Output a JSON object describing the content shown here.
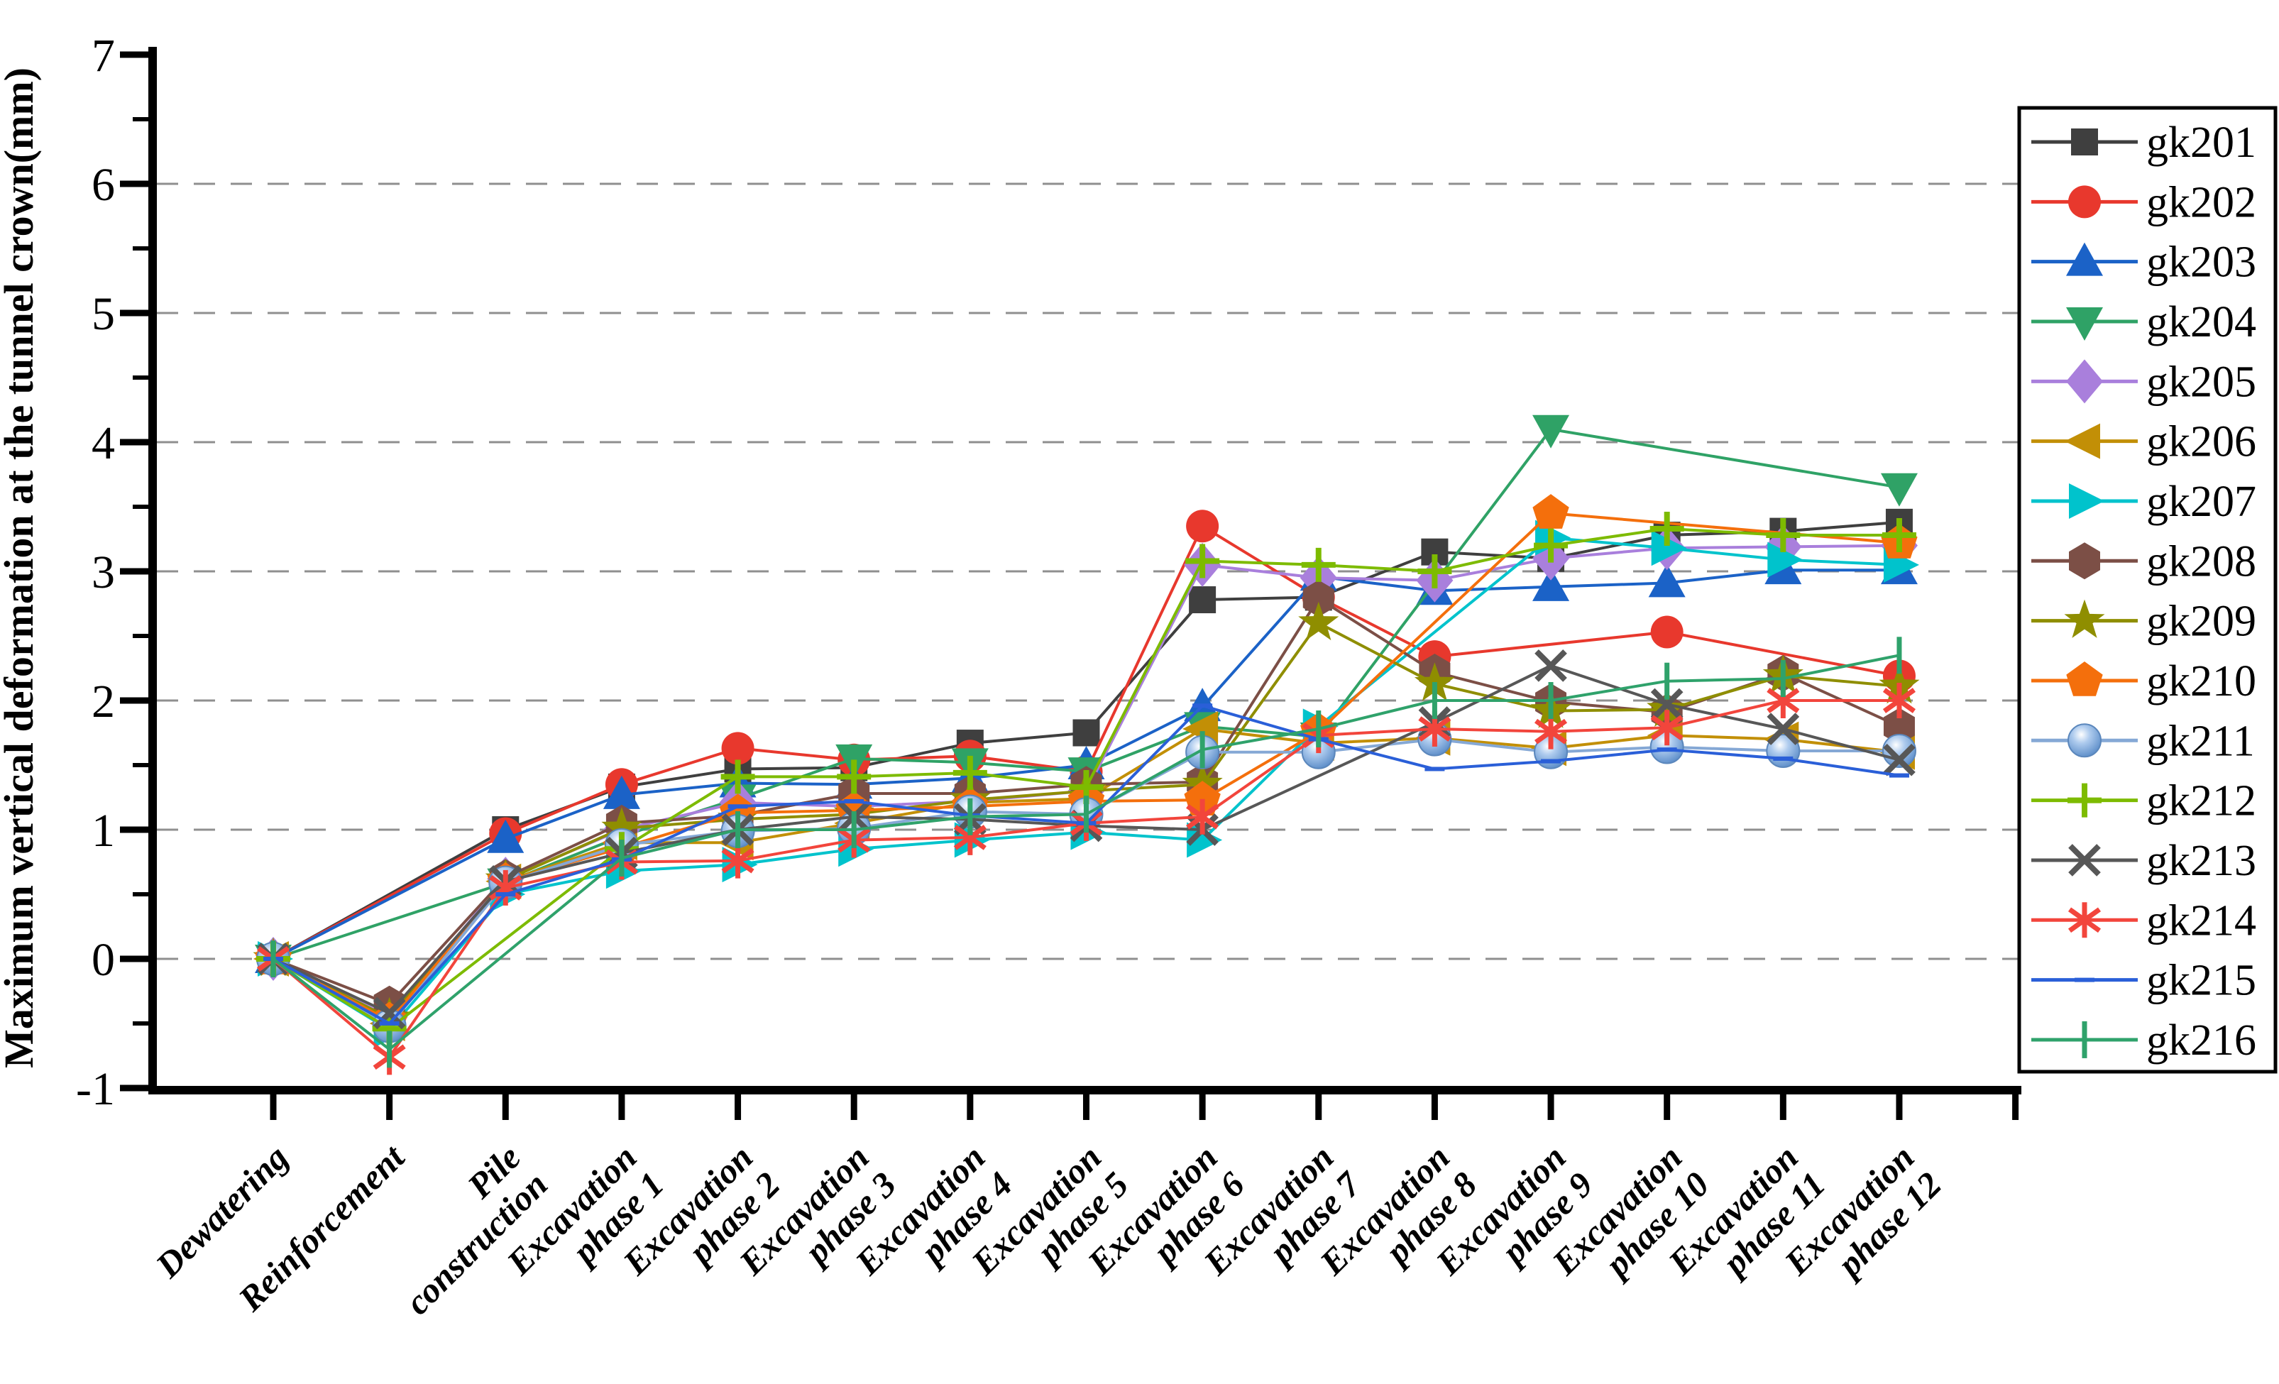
{
  "figure": {
    "background": "#ffffff",
    "grid_color": "#8f8f8f",
    "axis_color": "#000000"
  },
  "chart_data": {
    "type": "line",
    "title": "",
    "xlabel": "",
    "ylabel": "Maximum vertical deformation at the tunnel crown(mm)",
    "ylim": [
      -1,
      7
    ],
    "yticks": [
      -1,
      0,
      1,
      2,
      3,
      4,
      5,
      6,
      7
    ],
    "ytick_labels": [
      "-1",
      "0",
      "1",
      "2",
      "3",
      "4",
      "5",
      "6",
      "7"
    ],
    "minor_yticks": [
      -0.5,
      0.5,
      1.5,
      2.5,
      3.5,
      4.5,
      5.5,
      6.5
    ],
    "gridlines_at": [
      0,
      1,
      2,
      3,
      4,
      5,
      6
    ],
    "grid_on": true,
    "legend_position": "right",
    "categories": [
      "Dewatering",
      "Reinforcement",
      "Pile construction",
      "Excavation phase 1",
      "Excavation phase 2",
      "Excavation phase 3",
      "Excavation phase 4",
      "Excavation phase 5",
      "Excavation phase 6",
      "Excavation phase 7",
      "Excavation phase 8",
      "Excavation phase 9",
      "Excavation phase 10",
      "Excavation phase 11",
      "Excavation phase 12"
    ],
    "category_label_lines": [
      [
        "Dewatering"
      ],
      [
        "Reinforcement"
      ],
      [
        "Pile",
        "construction"
      ],
      [
        "Excavation",
        "phase 1"
      ],
      [
        "Excavation",
        "phase 2"
      ],
      [
        "Excavation",
        "phase 3"
      ],
      [
        "Excavation",
        "phase 4"
      ],
      [
        "Excavation",
        "phase 5"
      ],
      [
        "Excavation",
        "phase 6"
      ],
      [
        "Excavation",
        "phase 7"
      ],
      [
        "Excavation",
        "phase 8"
      ],
      [
        "Excavation",
        "phase 9"
      ],
      [
        "Excavation",
        "phase 10"
      ],
      [
        "Excavation",
        "phase 11"
      ],
      [
        "Excavation",
        "phase 12"
      ]
    ],
    "series": [
      {
        "name": "gk201",
        "color": "#3f3f3f",
        "marker": "square",
        "values": [
          0,
          null,
          1.0,
          1.33,
          1.47,
          1.48,
          1.67,
          1.75,
          2.78,
          2.8,
          3.15,
          3.1,
          3.28,
          3.31,
          3.38
        ]
      },
      {
        "name": "gk202",
        "color": "#e8382d",
        "marker": "circle",
        "values": [
          0,
          null,
          0.97,
          1.35,
          1.63,
          1.54,
          1.57,
          1.45,
          3.35,
          2.8,
          2.34,
          null,
          2.53,
          null,
          2.19
        ]
      },
      {
        "name": "gk203",
        "color": "#1b62c7",
        "marker": "triangle-up",
        "values": [
          0,
          null,
          0.93,
          1.27,
          1.36,
          1.35,
          1.4,
          1.5,
          1.95,
          2.96,
          2.85,
          2.88,
          2.91,
          3.01,
          3.01
        ]
      },
      {
        "name": "gk204",
        "color": "#2fa266",
        "marker": "triangle-down",
        "values": [
          0,
          null,
          0.59,
          0.95,
          1.24,
          1.55,
          1.52,
          1.45,
          1.8,
          1.72,
          null,
          4.1,
          null,
          null,
          3.65
        ]
      },
      {
        "name": "gk205",
        "color": "#a97fdc",
        "marker": "diamond",
        "values": [
          0,
          -0.45,
          0.62,
          1.0,
          1.21,
          1.18,
          1.22,
          1.3,
          3.05,
          2.95,
          2.93,
          3.1,
          3.18,
          3.19,
          3.2
        ]
      },
      {
        "name": "gk206",
        "color": "#c28f06",
        "marker": "triangle-left",
        "values": [
          0,
          -0.5,
          0.6,
          0.9,
          0.9,
          1.05,
          1.21,
          1.24,
          1.78,
          1.67,
          1.71,
          1.63,
          1.73,
          1.7,
          1.6
        ]
      },
      {
        "name": "gk207",
        "color": "#00c3cc",
        "marker": "triangle-right",
        "values": [
          0,
          -0.55,
          0.5,
          0.68,
          0.73,
          0.85,
          0.92,
          0.98,
          0.92,
          1.8,
          null,
          3.26,
          3.18,
          3.09,
          3.05
        ]
      },
      {
        "name": "gk208",
        "color": "#7c4f46",
        "marker": "hexagon",
        "values": [
          0,
          -0.35,
          0.63,
          1.05,
          1.11,
          1.28,
          1.28,
          1.35,
          1.37,
          2.79,
          2.22,
          1.99,
          1.91,
          2.21,
          1.8
        ]
      },
      {
        "name": "gk209",
        "color": "#8f8e00",
        "marker": "star",
        "values": [
          0,
          -0.46,
          0.61,
          1.01,
          1.08,
          1.12,
          1.23,
          1.3,
          1.35,
          2.6,
          2.13,
          1.92,
          1.93,
          2.19,
          2.11
        ]
      },
      {
        "name": "gk210",
        "color": "#f46f0c",
        "marker": "pentagon",
        "values": [
          0,
          -0.48,
          0.6,
          0.86,
          1.13,
          1.15,
          1.18,
          1.22,
          1.23,
          1.76,
          null,
          3.45,
          null,
          null,
          3.22
        ]
      },
      {
        "name": "gk211",
        "color": "#85a8d5",
        "marker": "ball",
        "values": [
          0,
          -0.52,
          0.59,
          0.88,
          0.99,
          1.01,
          1.14,
          1.12,
          1.6,
          1.6,
          1.7,
          1.6,
          1.64,
          1.61,
          1.61
        ]
      },
      {
        "name": "gk212",
        "color": "#7dbb00",
        "marker": "plus",
        "values": [
          0,
          -0.54,
          null,
          0.85,
          1.41,
          1.41,
          1.44,
          1.33,
          3.08,
          3.05,
          3.0,
          3.2,
          3.33,
          3.28,
          3.28
        ]
      },
      {
        "name": "gk213",
        "color": "#575757",
        "marker": "x",
        "values": [
          0,
          -0.42,
          0.6,
          0.82,
          1.0,
          1.1,
          1.08,
          1.03,
          1.0,
          null,
          1.83,
          2.27,
          1.97,
          1.78,
          1.54
        ]
      },
      {
        "name": "gk214",
        "color": "#f2453c",
        "marker": "asterisk",
        "values": [
          0,
          -0.76,
          0.55,
          0.75,
          0.76,
          0.92,
          0.94,
          1.05,
          1.1,
          1.73,
          1.78,
          1.76,
          1.79,
          2.0,
          2.0
        ]
      },
      {
        "name": "gk215",
        "color": "#2a5fd8",
        "marker": "dash",
        "values": [
          0,
          -0.5,
          0.5,
          0.77,
          1.18,
          1.22,
          1.11,
          1.05,
          1.96,
          1.7,
          1.47,
          1.53,
          1.62,
          1.55,
          1.42
        ]
      },
      {
        "name": "gk216",
        "color": "#2fa26b",
        "marker": "vbar",
        "values": [
          0,
          -0.7,
          null,
          0.78,
          1.0,
          1.0,
          1.1,
          1.12,
          1.62,
          1.78,
          2.0,
          2.0,
          2.15,
          2.17,
          2.35
        ]
      }
    ]
  }
}
